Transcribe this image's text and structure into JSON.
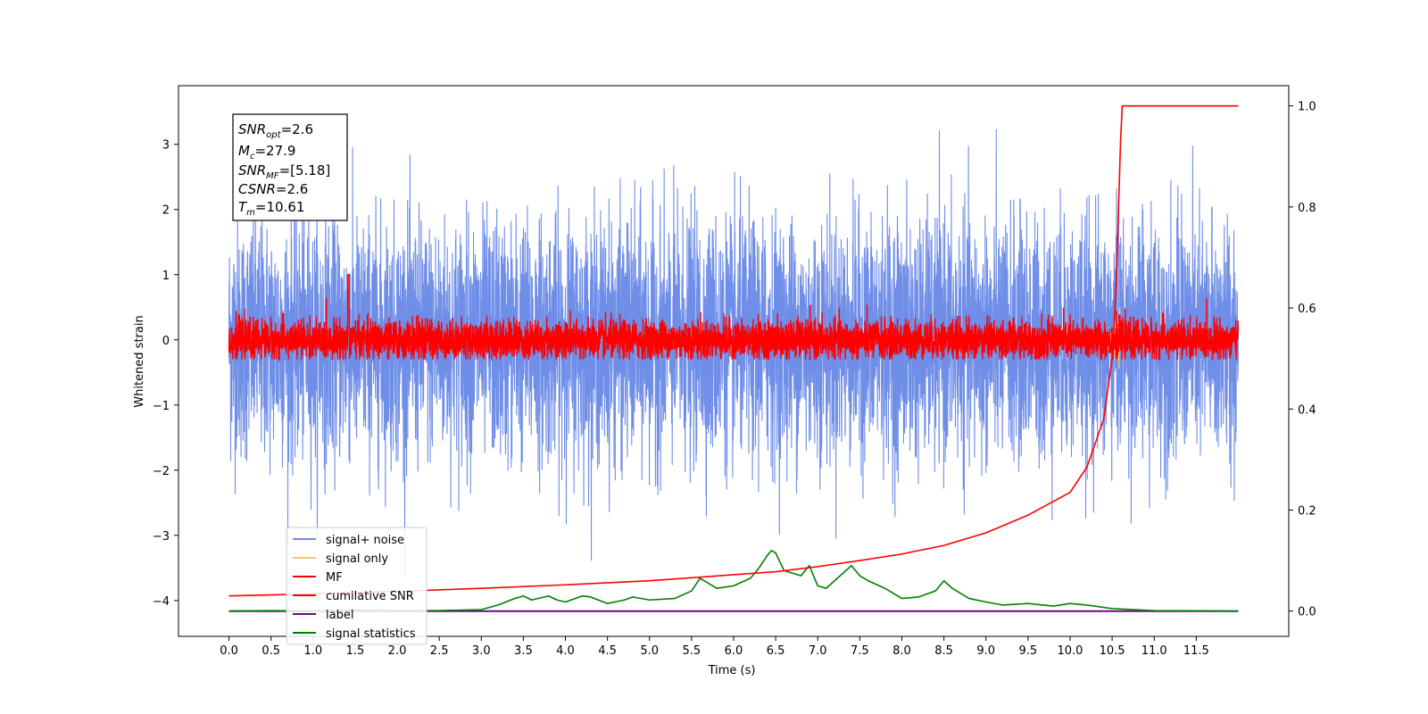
{
  "chart_data": {
    "type": "line",
    "xlabel": "Time (s)",
    "ylabel": "Whitened strain",
    "xlim": [
      -0.6,
      12.6
    ],
    "ylim": [
      -4.55,
      3.9
    ],
    "y2lim": [
      -0.05,
      1.04
    ],
    "x_ticks": [
      0.0,
      0.5,
      1.0,
      1.5,
      2.0,
      2.5,
      3.0,
      3.5,
      4.0,
      4.5,
      5.0,
      5.5,
      6.0,
      6.5,
      7.0,
      7.5,
      8.0,
      8.5,
      9.0,
      9.5,
      10.0,
      10.5,
      11.0,
      11.5
    ],
    "x_tick_labels": [
      "0.0",
      "0.5",
      "1.0",
      "1.5",
      "2.0",
      "2.5",
      "3.0",
      "3.5",
      "4.0",
      "4.5",
      "5.0",
      "5.5",
      "6.0",
      "6.5",
      "7.0",
      "7.5",
      "8.0",
      "8.5",
      "9.0",
      "9.5",
      "10.0",
      "10.5",
      "11.0",
      "11.5"
    ],
    "y_ticks": [
      -4,
      -3,
      -2,
      -1,
      0,
      1,
      2,
      3
    ],
    "y_tick_labels": [
      "−4",
      "−3",
      "−2",
      "−1",
      "0",
      "1",
      "2",
      "3"
    ],
    "y2_ticks": [
      0.0,
      0.2,
      0.4,
      0.6,
      0.8,
      1.0
    ],
    "y2_tick_labels": [
      "0.0",
      "0.2",
      "0.4",
      "0.6",
      "0.8",
      "1.0"
    ],
    "legend_placement": "lower-left",
    "grid": false,
    "series": [
      {
        "name": "signal+ noise",
        "axis": "left",
        "color": "#6f8ee8",
        "x_range": [
          0.0,
          12.0
        ],
        "approx_std": 0.9,
        "approx_min": -4.15,
        "approx_max": 3.6
      },
      {
        "name": "signal only",
        "axis": "left",
        "color": "#f5c87a",
        "x_range": [
          0.0,
          12.0
        ],
        "peak_x": 10.6,
        "approx_min": -0.55,
        "approx_max": 0.55
      },
      {
        "name": "MF",
        "axis": "left",
        "color": "#ff0000",
        "x_range": [
          0.0,
          12.0
        ],
        "approx_std": 0.15,
        "approx_min": -0.3,
        "approx_max": 1.0
      },
      {
        "name": "cumilative SNR",
        "axis": "right",
        "color": "#ff0000",
        "x": [
          0.0,
          1.0,
          2.0,
          3.0,
          4.0,
          5.0,
          6.0,
          6.5,
          7.0,
          7.5,
          8.0,
          8.5,
          9.0,
          9.5,
          10.0,
          10.2,
          10.4,
          10.5,
          10.55,
          10.6,
          10.62,
          11.0,
          12.0
        ],
        "y": [
          0.03,
          0.034,
          0.039,
          0.045,
          0.052,
          0.06,
          0.072,
          0.078,
          0.088,
          0.1,
          0.113,
          0.13,
          0.155,
          0.19,
          0.235,
          0.285,
          0.38,
          0.5,
          0.65,
          0.93,
          1.0,
          1.0,
          1.0
        ]
      },
      {
        "name": "label",
        "axis": "right",
        "color": "#6a0d83",
        "x": [
          0.0,
          12.0
        ],
        "y": [
          0.0,
          0.0
        ]
      },
      {
        "name": "signal statistics",
        "axis": "right",
        "color": "#008000",
        "x": [
          0.0,
          0.5,
          1.0,
          1.5,
          2.0,
          2.5,
          3.0,
          3.2,
          3.4,
          3.5,
          3.6,
          3.8,
          3.9,
          4.0,
          4.2,
          4.3,
          4.5,
          4.7,
          4.8,
          5.0,
          5.3,
          5.5,
          5.6,
          5.8,
          6.0,
          6.2,
          6.3,
          6.4,
          6.45,
          6.5,
          6.6,
          6.7,
          6.8,
          6.9,
          7.0,
          7.1,
          7.2,
          7.3,
          7.4,
          7.5,
          7.6,
          7.8,
          8.0,
          8.2,
          8.4,
          8.5,
          8.6,
          8.8,
          9.0,
          9.2,
          9.5,
          9.8,
          10.0,
          10.2,
          10.5,
          11.0,
          12.0
        ],
        "y": [
          0.0,
          0.001,
          0.0,
          0.002,
          0.001,
          0.001,
          0.003,
          0.012,
          0.025,
          0.03,
          0.022,
          0.03,
          0.022,
          0.018,
          0.03,
          0.028,
          0.015,
          0.022,
          0.028,
          0.022,
          0.025,
          0.04,
          0.065,
          0.045,
          0.05,
          0.065,
          0.085,
          0.11,
          0.12,
          0.115,
          0.08,
          0.075,
          0.07,
          0.09,
          0.05,
          0.045,
          0.06,
          0.075,
          0.09,
          0.07,
          0.06,
          0.045,
          0.025,
          0.028,
          0.04,
          0.06,
          0.045,
          0.025,
          0.018,
          0.012,
          0.015,
          0.01,
          0.015,
          0.012,
          0.005,
          0.001,
          0.0
        ]
      }
    ],
    "legend": [
      "signal+ noise",
      "signal only",
      "MF",
      "cumilative SNR",
      "label",
      "signal statistics"
    ]
  },
  "info_box": {
    "snr_opt": "=2.6",
    "mc": "=27.9",
    "snr_mf": "=[5.18]",
    "csnr": "=2.6",
    "tm": "=10.61"
  }
}
